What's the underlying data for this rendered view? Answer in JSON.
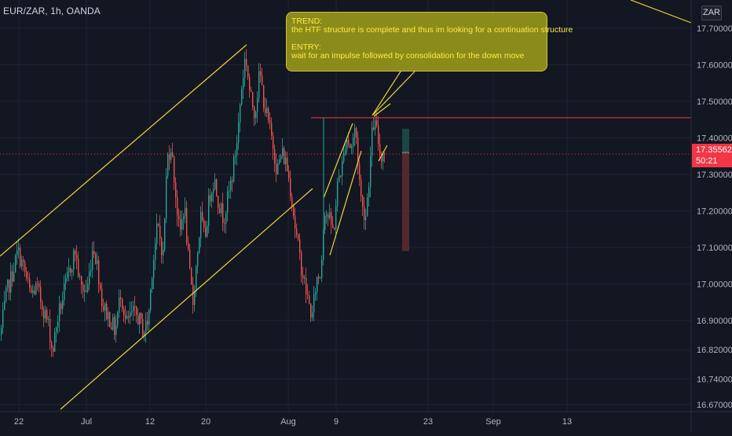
{
  "header": {
    "symbol": "EUR/ZAR, 1h, OANDA",
    "currency": "ZAR"
  },
  "annotation": {
    "trend_title": "TREND:",
    "trend_text": "the HTF structure is complete and thus im looking for a continuation structure",
    "entry_title": "ENTRY:",
    "entry_text": "wait for an impulse followed by consolidation for the down move"
  },
  "price_tag": {
    "price": "17.35562",
    "countdown": "50:21"
  },
  "colors": {
    "background": "#131722",
    "up_candle": "#26a69a",
    "down_candle": "#ef5350",
    "trendline": "#f0d43a",
    "resistance": "#f23645",
    "price_line": "#f23645"
  },
  "chart_data": {
    "type": "candlestick",
    "symbol": "EUR/ZAR",
    "timeframe": "1h",
    "source": "OANDA",
    "ylim": [
      16.64,
      17.78
    ],
    "y_ticks": [
      17.7,
      17.6,
      17.5,
      17.4,
      17.3,
      17.2,
      17.1,
      17.0,
      16.9,
      16.82,
      16.74,
      16.67
    ],
    "y_tick_labels": [
      "17.70000",
      "17.60000",
      "17.50000",
      "17.40000",
      "17.30000",
      "17.20000",
      "17.10000",
      "17.00000",
      "16.90000",
      "16.82000",
      "16.74000",
      "16.67000"
    ],
    "x_ticks": [
      "22",
      "Jul",
      "12",
      "20",
      "Aug",
      "9",
      "23",
      "Sep",
      "13"
    ],
    "current_price": 17.35562,
    "resistance_level": 17.455,
    "position_tool": {
      "entry": 17.36,
      "target_zone_top": 17.425,
      "stop_zone_bottom": 17.09
    },
    "anchor_closes": [
      [
        0,
        16.86
      ],
      [
        8,
        16.98
      ],
      [
        14,
        17.02
      ],
      [
        22,
        17.09
      ],
      [
        30,
        17.04
      ],
      [
        38,
        16.97
      ],
      [
        46,
        16.99
      ],
      [
        55,
        16.93
      ],
      [
        62,
        16.88
      ],
      [
        66,
        16.81
      ],
      [
        72,
        16.9
      ],
      [
        80,
        16.97
      ],
      [
        88,
        17.04
      ],
      [
        95,
        17.09
      ],
      [
        102,
        16.99
      ],
      [
        110,
        16.98
      ],
      [
        118,
        17.11
      ],
      [
        124,
        17.04
      ],
      [
        130,
        16.94
      ],
      [
        138,
        16.91
      ],
      [
        146,
        16.87
      ],
      [
        153,
        16.98
      ],
      [
        160,
        16.89
      ],
      [
        168,
        16.92
      ],
      [
        175,
        16.91
      ],
      [
        182,
        16.87
      ],
      [
        188,
        16.9
      ],
      [
        193,
        17.04
      ],
      [
        200,
        17.16
      ],
      [
        207,
        17.08
      ],
      [
        212,
        17.34
      ],
      [
        217,
        17.38
      ],
      [
        222,
        17.27
      ],
      [
        228,
        17.13
      ],
      [
        234,
        17.22
      ],
      [
        240,
        17.04
      ],
      [
        245,
        16.95
      ],
      [
        250,
        17.07
      ],
      [
        255,
        17.18
      ],
      [
        260,
        17.12
      ],
      [
        266,
        17.24
      ],
      [
        272,
        17.29
      ],
      [
        278,
        17.22
      ],
      [
        284,
        17.18
      ],
      [
        290,
        17.24
      ],
      [
        296,
        17.31
      ],
      [
        302,
        17.41
      ],
      [
        306,
        17.52
      ],
      [
        312,
        17.63
      ],
      [
        318,
        17.51
      ],
      [
        324,
        17.47
      ],
      [
        330,
        17.58
      ],
      [
        336,
        17.49
      ],
      [
        342,
        17.43
      ],
      [
        347,
        17.38
      ],
      [
        352,
        17.31
      ],
      [
        358,
        17.36
      ],
      [
        364,
        17.33
      ],
      [
        370,
        17.25
      ],
      [
        376,
        17.14
      ],
      [
        382,
        17.06
      ],
      [
        388,
        16.99
      ],
      [
        393,
        16.94
      ],
      [
        397,
        16.91
      ],
      [
        402,
        17.01
      ],
      [
        408,
        17.03
      ],
      [
        412,
        17.21
      ],
      [
        418,
        17.18
      ],
      [
        424,
        17.14
      ],
      [
        430,
        17.29
      ],
      [
        436,
        17.33
      ],
      [
        440,
        17.41
      ],
      [
        446,
        17.37
      ],
      [
        452,
        17.43
      ],
      [
        456,
        17.31
      ],
      [
        460,
        17.21
      ],
      [
        465,
        17.19
      ],
      [
        470,
        17.31
      ],
      [
        474,
        17.44
      ],
      [
        478,
        17.43
      ],
      [
        484,
        17.35
      ],
      [
        490,
        17.37
      ]
    ],
    "annotations": [
      "TREND: the HTF structure is complete and thus im looking for a continuation structure",
      "ENTRY: wait for an impulse followed by consolidation for the down move"
    ]
  }
}
